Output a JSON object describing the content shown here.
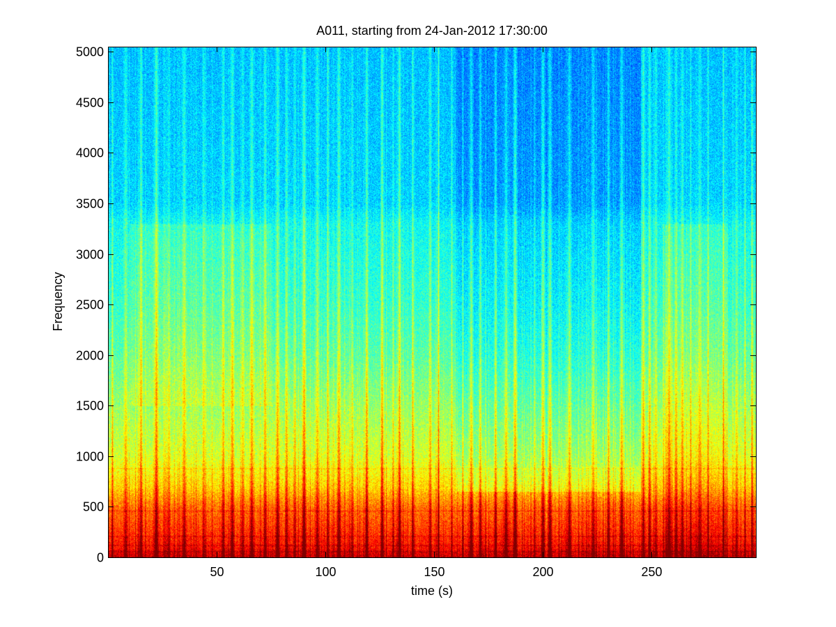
{
  "chart_data": {
    "type": "heatmap",
    "subtype": "spectrogram",
    "title": "A011, starting from 24-Jan-2012 17:30:00",
    "xlabel": "time (s)",
    "ylabel": "Frequency",
    "xlim": [
      0,
      298
    ],
    "ylim": [
      0,
      5050
    ],
    "xticks": [
      50,
      100,
      150,
      200,
      250
    ],
    "xtick_labels": [
      "50",
      "100",
      "150",
      "200",
      "250"
    ],
    "yticks": [
      0,
      500,
      1000,
      1500,
      2000,
      2500,
      3000,
      3500,
      4000,
      4500,
      5000
    ],
    "ytick_labels": [
      "0",
      "500",
      "1000",
      "1500",
      "2000",
      "2500",
      "3000",
      "3500",
      "4000",
      "4500",
      "5000"
    ],
    "colormap": "jet",
    "grid": false,
    "legend": false,
    "background_intensity_profile": [
      {
        "freq": 0,
        "level": 0.93
      },
      {
        "freq": 100,
        "level": 0.86
      },
      {
        "freq": 250,
        "level": 0.82
      },
      {
        "freq": 500,
        "level": 0.76
      },
      {
        "freq": 700,
        "level": 0.66
      },
      {
        "freq": 1000,
        "level": 0.58
      },
      {
        "freq": 1500,
        "level": 0.52
      },
      {
        "freq": 2000,
        "level": 0.46
      },
      {
        "freq": 2500,
        "level": 0.42
      },
      {
        "freq": 3300,
        "level": 0.38
      },
      {
        "freq": 3500,
        "level": 0.33
      },
      {
        "freq": 5050,
        "level": 0.31
      }
    ],
    "broadband_transients_s": [
      2,
      8,
      15,
      22,
      28,
      35,
      44,
      53,
      57,
      62,
      66,
      72,
      78,
      82,
      86,
      90,
      96,
      101,
      106,
      112,
      119,
      126,
      131,
      134,
      140,
      148,
      152,
      158,
      163,
      167,
      171,
      178,
      183,
      187,
      196,
      200,
      203,
      212,
      223,
      230,
      236,
      246,
      249,
      252,
      258,
      261,
      264,
      268,
      272,
      276,
      283,
      289,
      293,
      296
    ],
    "tonal_bands_hz": [
      60,
      120,
      210,
      460,
      880
    ]
  }
}
